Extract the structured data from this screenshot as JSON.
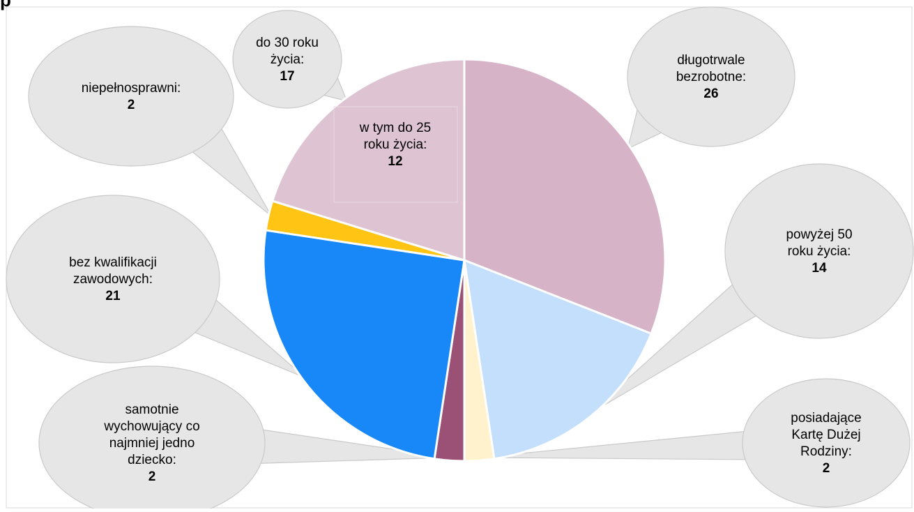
{
  "title": "p",
  "chart_data": {
    "type": "pie",
    "title": "",
    "slices": [
      {
        "label": "długotrwale bezrobotne:",
        "value": 26,
        "color": "#d6b3c7"
      },
      {
        "label": "powyżej 50 roku życia:",
        "value": 14,
        "color": "#c4dffb"
      },
      {
        "label": "posiadające Kartę Dużej Rodziny:",
        "value": 2,
        "color": "#fff2cc"
      },
      {
        "label": "samotnie wychowujący co najmniej jedno dziecko:",
        "value": 2,
        "color": "#9b5176"
      },
      {
        "label": "bez kwalifikacji zawodowych:",
        "value": 21,
        "color": "#1888f8"
      },
      {
        "label": "niepełnosprawni:",
        "value": 2,
        "color": "#ffc414"
      },
      {
        "label": "do 30 roku życia:",
        "value": 17,
        "color": "#dec4d3"
      }
    ],
    "sub_annotation": {
      "label": "w tym do 25 roku życia:",
      "value": 12
    }
  }
}
